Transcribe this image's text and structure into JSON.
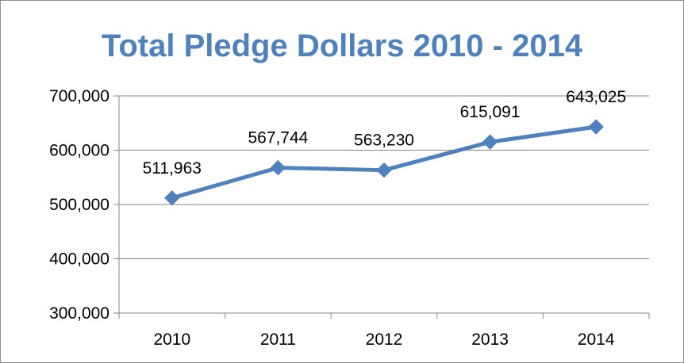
{
  "chart_data": {
    "type": "line",
    "title": "Total Pledge Dollars 2010 - 2014",
    "xlabel": "",
    "ylabel": "",
    "categories": [
      "2010",
      "2011",
      "2012",
      "2013",
      "2014"
    ],
    "series": [
      {
        "values": [
          511963,
          567744,
          563230,
          615091,
          643025
        ],
        "value_labels": [
          "511,963",
          "567,744",
          "563,230",
          "615,091",
          "643,025"
        ],
        "color": "#4f81bd",
        "marker": "diamond"
      }
    ],
    "ylim": [
      300000,
      700000
    ],
    "yticks": [
      300000,
      400000,
      500000,
      600000,
      700000
    ],
    "ytick_labels": [
      "300,000",
      "400,000",
      "500,000",
      "600,000",
      "700,000"
    ],
    "grid": true,
    "legend": "none"
  }
}
